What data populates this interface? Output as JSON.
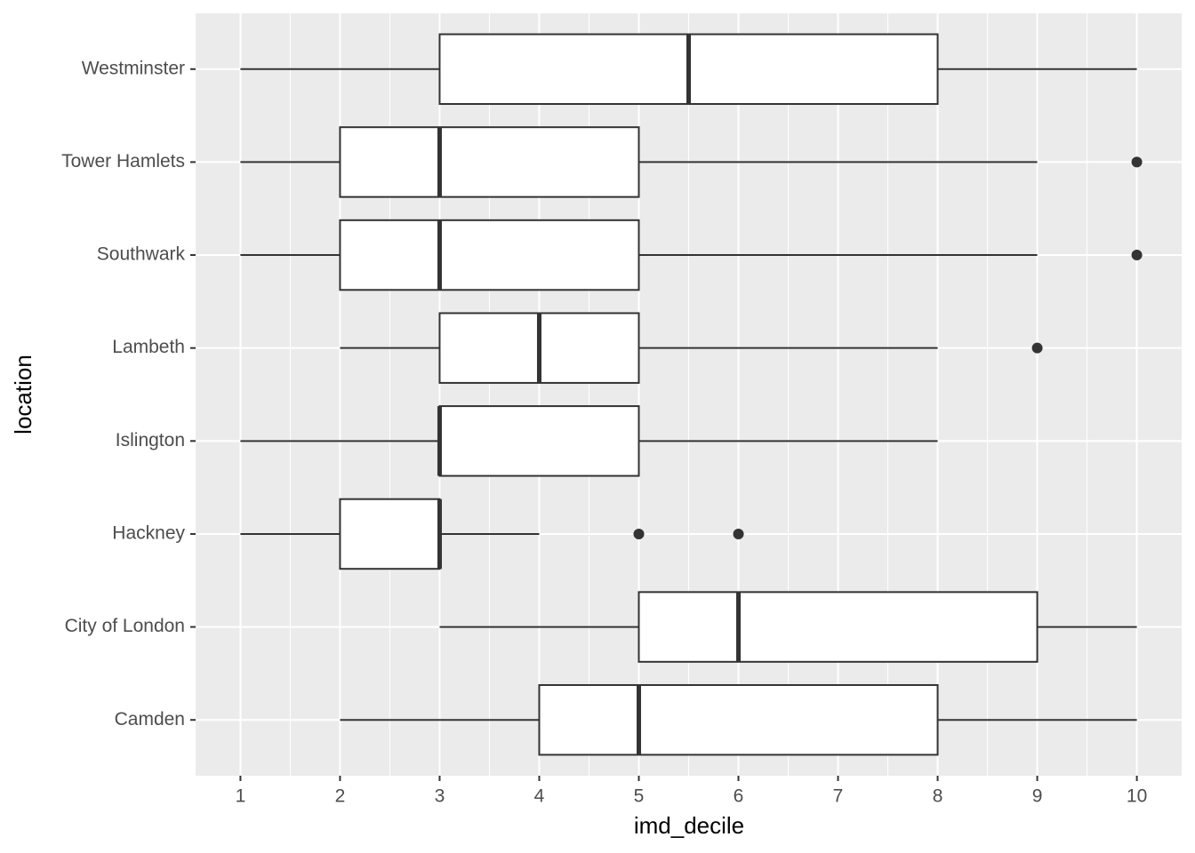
{
  "chart_data": {
    "type": "boxplot",
    "orientation": "horizontal",
    "x_label": "imd_decile",
    "y_label": "location",
    "categories": [
      "Camden",
      "City of London",
      "Hackney",
      "Islington",
      "Lambeth",
      "Southwark",
      "Tower Hamlets",
      "Westminster"
    ],
    "min": [
      2,
      3,
      1,
      1,
      2,
      1,
      1,
      1
    ],
    "q1": [
      4,
      5,
      2,
      3,
      3,
      2,
      2,
      3
    ],
    "median": [
      5,
      6,
      3,
      3,
      4,
      3,
      3,
      5.5
    ],
    "q3": [
      8,
      9,
      3,
      5,
      5,
      5,
      5,
      8
    ],
    "max": [
      10,
      10,
      4,
      8,
      8,
      9,
      9,
      10
    ],
    "outliers": [
      [],
      [],
      [
        5,
        6
      ],
      [],
      [
        9
      ],
      [
        10
      ],
      [
        10
      ],
      []
    ],
    "xlim": [
      0.55,
      10.45
    ],
    "xticks": [
      1,
      2,
      3,
      4,
      5,
      6,
      7,
      8,
      9,
      10
    ],
    "grid": true,
    "box_color": "#333333",
    "box_fill": "#ffffff",
    "panel_color": "#ebebeb"
  }
}
